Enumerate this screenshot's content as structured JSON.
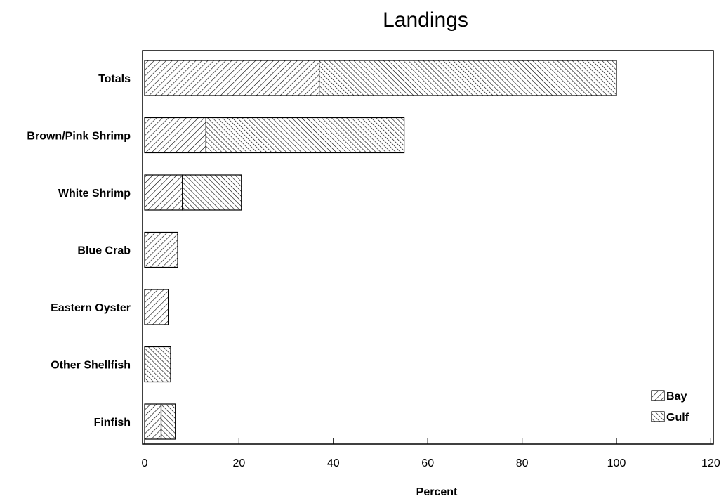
{
  "chart_data": {
    "type": "bar",
    "orientation": "horizontal",
    "stacked": true,
    "title": "Landings",
    "xlabel": "Percent",
    "ylabel": "",
    "xlim": [
      0,
      120
    ],
    "x_ticks": [
      0,
      20,
      40,
      60,
      80,
      100,
      120
    ],
    "categories": [
      "Totals",
      "Brown/Pink Shrimp",
      "White Shrimp",
      "Blue Crab",
      "Eastern Oyster",
      "Other Shellfish",
      "Finfish"
    ],
    "series": [
      {
        "name": "Bay",
        "pattern": "forward-hatch",
        "values": [
          37,
          13,
          8,
          7,
          5,
          0,
          3.5
        ]
      },
      {
        "name": "Gulf",
        "pattern": "back-hatch",
        "values": [
          63,
          42,
          12.5,
          0,
          0,
          5.5,
          3
        ]
      }
    ],
    "legend_position": "bottom-right",
    "grid": false
  }
}
